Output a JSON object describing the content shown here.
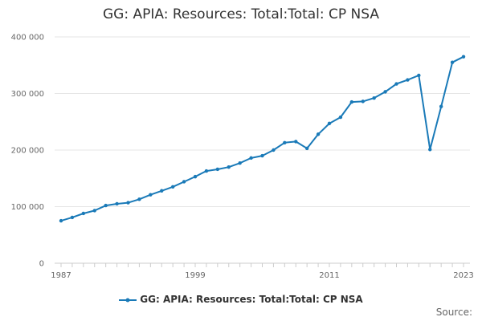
{
  "chart_data": {
    "type": "line",
    "title": "GG: APIA: Resources: Total:Total: CP NSA",
    "xlabel": "",
    "ylabel": "",
    "x_ticks": [
      "1987",
      "1999",
      "2011",
      "2023"
    ],
    "y_ticks": [
      "0",
      "100 000",
      "200 000",
      "300 000",
      "400 000"
    ],
    "xlim": [
      1987,
      2023
    ],
    "ylim": [
      0,
      400000
    ],
    "grid": "horizontal",
    "legend": "bottom",
    "series": [
      {
        "name": "GG: APIA: Resources: Total:Total: CP NSA",
        "color": "#1a7ab8",
        "x": [
          1987,
          1988,
          1989,
          1990,
          1991,
          1992,
          1993,
          1994,
          1995,
          1996,
          1997,
          1998,
          1999,
          2000,
          2001,
          2002,
          2003,
          2004,
          2005,
          2006,
          2007,
          2008,
          2009,
          2010,
          2011,
          2012,
          2013,
          2014,
          2015,
          2016,
          2017,
          2018,
          2019,
          2020,
          2021,
          2022,
          2023
        ],
        "values": [
          75000,
          81000,
          88000,
          93000,
          102000,
          105000,
          107000,
          113000,
          121000,
          128000,
          135000,
          144000,
          153000,
          163000,
          166000,
          170000,
          177000,
          186000,
          190000,
          200000,
          213000,
          215000,
          203000,
          228000,
          247000,
          258000,
          285000,
          286000,
          292000,
          303000,
          317000,
          324000,
          332000,
          201000,
          277000,
          355000,
          365000
        ]
      }
    ]
  },
  "legend_label": "GG: APIA: Resources: Total:Total: CP NSA",
  "source_label": "Source:"
}
